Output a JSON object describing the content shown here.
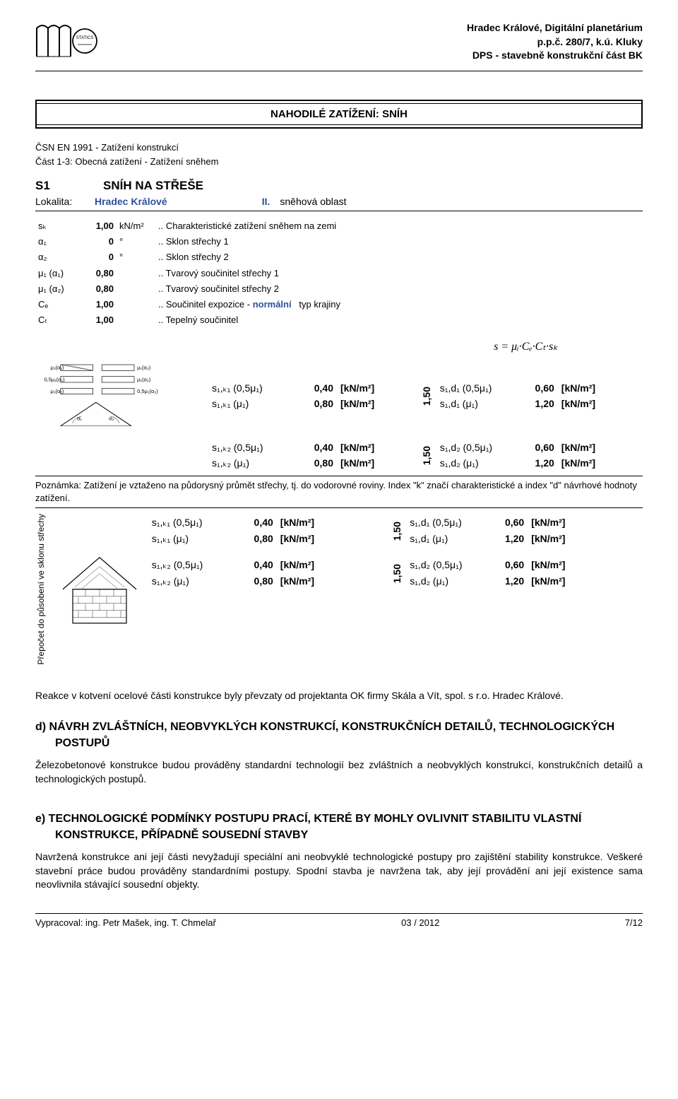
{
  "header": {
    "project1": "Hradec Králové, Digitální planetárium",
    "project2": "p.p.č. 280/7, k.ú. Kluky",
    "project3": "DPS - stavebně konstrukční část BK"
  },
  "title": "NAHODILÉ ZATÍŽENÍ: SNÍH",
  "ref": "ČSN EN 1991 - Zatížení konstrukcí",
  "part": "Část 1-3: Obecná zatížení - Zatížení sněhem",
  "s1": {
    "code": "S1",
    "text": "SNÍH NA STŘEŠE"
  },
  "loc": {
    "label": "Lokalita:",
    "value": "Hradec Králové",
    "zone": "II.",
    "zonetext": "sněhová oblast"
  },
  "params": [
    {
      "sym": "sₖ",
      "val": "1,00",
      "unit": "kN/m²",
      "note": ".. Charakteristické zatížení sněhem na zemi",
      "blue": true
    },
    {
      "sym": "α₁",
      "val": "0",
      "unit": "°",
      "note": ".. Sklon střechy 1",
      "blue": true
    },
    {
      "sym": "α₂",
      "val": "0",
      "unit": "°",
      "note": ".. Sklon střechy 2",
      "blue": true
    },
    {
      "sym": "μ₁ (α₁)",
      "val": "0,80",
      "unit": "",
      "note": ".. Tvarový součinitel střechy 1",
      "blue": false
    },
    {
      "sym": "μ₁ (α₂)",
      "val": "0,80",
      "unit": "",
      "note": ".. Tvarový součinitel střechy 2",
      "blue": false
    },
    {
      "sym": "Cₑ",
      "val": "1,00",
      "unit": "",
      "note": ".. Součinitel expozice -",
      "extra": "normální",
      "extra2": "typ krajiny",
      "blue": true
    },
    {
      "sym": "Cₜ",
      "val": "1,00",
      "unit": "",
      "note": ".. Tepelný součinitel",
      "blue": true
    }
  ],
  "formula": "s = μᵢ·Cₑ·Cₜ·sₖ",
  "diag_labels": {
    "top_left": "μ₁(α₁)",
    "top_right": "μ₁(α₂)",
    "mid_left": "0,5μ₁(α₁)",
    "mid_right": "μ₁(α₂)",
    "bot_left": "μ₁(α₁)",
    "bot_right": "0,5μ₁(α₂)",
    "a1": "α₁",
    "a2": "α₂"
  },
  "group1": [
    {
      "s": "s₁,ₖ₁ (0,5μ₁)",
      "v": "0,40",
      "u": "[kN/m²]",
      "s2": "s₁,d₁ (0,5μ₁)",
      "v2": "0,60",
      "u2": "[kN/m²]"
    },
    {
      "s": "s₁,ₖ₁ (μ₁)",
      "v": "0,80",
      "u": "[kN/m²]",
      "s2": "s₁,d₁ (μ₁)",
      "v2": "1,20",
      "u2": "[kN/m²]"
    }
  ],
  "ratio": "1,50",
  "group2": [
    {
      "s": "s₁,ₖ₂ (0,5μ₁)",
      "v": "0,40",
      "u": "[kN/m²]",
      "s2": "s₁,d₂ (0,5μ₁)",
      "v2": "0,60",
      "u2": "[kN/m²]"
    },
    {
      "s": "s₁,ₖ₂ (μ₁)",
      "v": "0,80",
      "u": "[kN/m²]",
      "s2": "s₁,d₂ (μ₁)",
      "v2": "1,20",
      "u2": "[kN/m²]"
    }
  ],
  "noteP": "Poznámka: Zatížení je vztaženo na půdorysný průmět střechy, tj. do vodorovné roviny. Index \"k\" značí charakteristické a index \"d\" návrhové hodnoty zatížení.",
  "sidetxt": "Přepočet do\npůsobení ve\nsklonu střechy",
  "reak": "Reakce v kotvení ocelové části konstrukce byly převzaty od projektanta OK firmy Skála a Vít, spol. s r.o. Hradec Králové.",
  "section_d": {
    "h": "d) NÁVRH ZVLÁŠTNÍCH, NEOBVYKLÝCH KONSTRUKCÍ, KONSTRUKČNÍCH DETAILŮ, TECHNOLOGICKÝCH POSTUPŮ",
    "p": "Železobetonové konstrukce budou prováděny standardní technologií bez zvláštních a neobvyklých konstrukcí, konstrukčních detailů a technologických postupů."
  },
  "section_e": {
    "h": "e) TECHNOLOGICKÉ PODMÍNKY POSTUPU PRACÍ, KTERÉ BY MOHLY OVLIVNIT STABILITU VLASTNÍ KONSTRUKCE, PŘÍPADNĚ SOUSEDNÍ STAVBY",
    "p": "Navržená konstrukce ani její části nevyžadují speciální ani neobvyklé technologické postupy pro zajištění stability konstrukce. Veškeré stavební práce budou prováděny standardními postupy. Spodní stavba je navržena tak, aby její provádění ani její existence sama neovlivnila stávající sousední objekty."
  },
  "footer": {
    "left": "Vypracoval: ing. Petr Mašek, ing. T. Chmelař",
    "mid": "03 / 2012",
    "right": "7/12"
  },
  "colors": {
    "blue": "#2e4f9b",
    "text": "#000000"
  }
}
